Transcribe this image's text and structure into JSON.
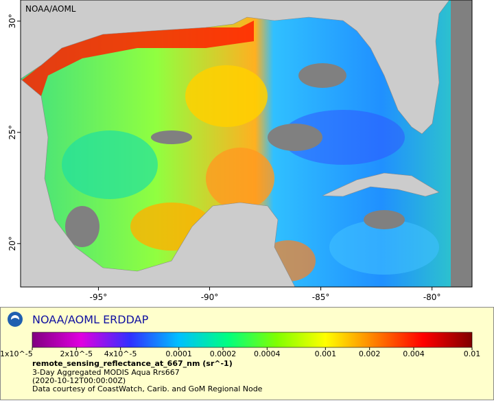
{
  "map": {
    "corner_label": "NOAA/AOML",
    "xlim": [
      -98.5,
      -78.2
    ],
    "ylim": [
      18.05,
      30.95
    ],
    "xticks": [
      {
        "value": -95,
        "label": "-95°"
      },
      {
        "value": -90,
        "label": "-90°"
      },
      {
        "value": -85,
        "label": "-85°"
      },
      {
        "value": -80,
        "label": "-80°"
      }
    ],
    "yticks": [
      {
        "value": 30,
        "label": "30°"
      },
      {
        "value": 25,
        "label": "25°"
      },
      {
        "value": 20,
        "label": "20°"
      }
    ]
  },
  "legend": {
    "brand": "NOAA/AOML ERDDAP",
    "colorbar": {
      "scale": "log",
      "lim": [
        1e-05,
        0.01
      ],
      "colors": [
        "#800080",
        "#e000e0",
        "#3030ff",
        "#00c0ff",
        "#00ff80",
        "#80ff00",
        "#ffff00",
        "#ff8000",
        "#ff0000",
        "#800000"
      ],
      "ticks": [
        {
          "value": 1e-05,
          "label": "1x10^-5"
        },
        {
          "value": 2e-05,
          "label": "2x10^-5"
        },
        {
          "value": 4e-05,
          "label": "4x10^-5"
        },
        0.0001,
        0.0002,
        0.0004,
        0.001,
        0.002,
        0.004,
        0.01
      ]
    },
    "variable": "remote_sensing_reflectance_at_667_nm (sr^-1)",
    "dataset": "3-Day Aggregated MODIS Aqua Rrs667",
    "time": "(2020-10-12T00:00:00Z)",
    "credit": "Data courtesy of CoastWatch, Carib. and GoM Regional Node"
  }
}
